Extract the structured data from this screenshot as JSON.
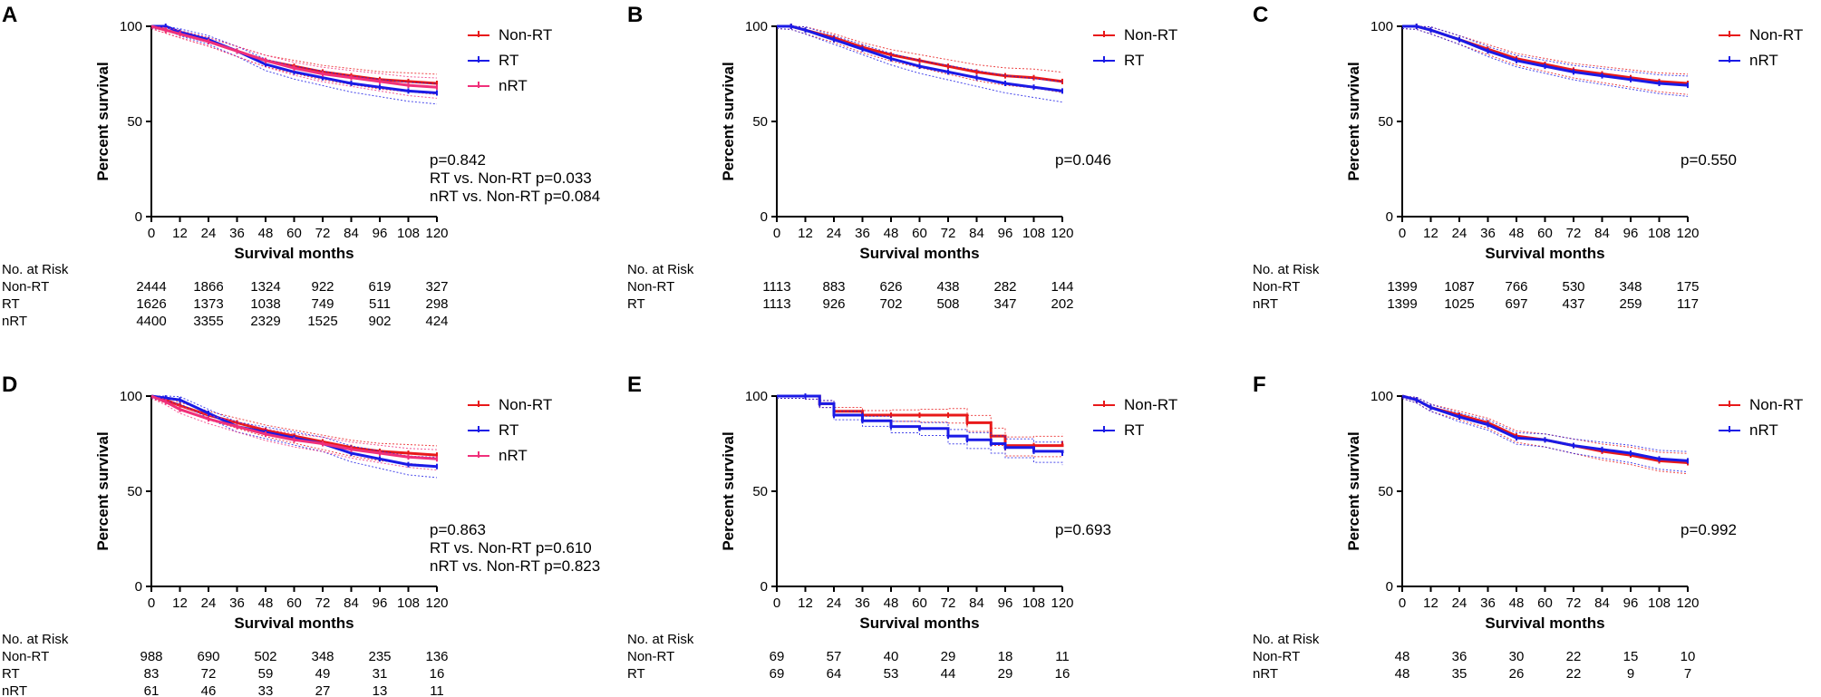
{
  "colors": {
    "non_rt": "#e8191a",
    "rt": "#1a1ae6",
    "nrt": "#f0307a",
    "axis": "#000000"
  },
  "chart_data": [
    {
      "type": "line",
      "panel": "A",
      "xlabel": "Survival months",
      "ylabel": "Percent survival",
      "xticks": [
        0,
        12,
        24,
        36,
        48,
        60,
        72,
        84,
        96,
        108,
        120
      ],
      "yticks": [
        0,
        50,
        100
      ],
      "xlim": [
        0,
        120
      ],
      "ylim": [
        0,
        100
      ],
      "series": [
        {
          "name": "Non-RT",
          "key": "non_rt",
          "x": [
            0,
            6,
            12,
            24,
            36,
            48,
            60,
            72,
            84,
            96,
            108,
            120
          ],
          "y": [
            100,
            98,
            96,
            92,
            87,
            82,
            79,
            76,
            74,
            72,
            71,
            70
          ]
        },
        {
          "name": "RT",
          "key": "rt",
          "x": [
            0,
            6,
            12,
            24,
            36,
            48,
            60,
            72,
            84,
            96,
            108,
            120
          ],
          "y": [
            100,
            100,
            97,
            93,
            87,
            80,
            76,
            73,
            70,
            68,
            66,
            65
          ]
        },
        {
          "name": "nRT",
          "key": "nrt",
          "x": [
            0,
            6,
            12,
            24,
            36,
            48,
            60,
            72,
            84,
            96,
            108,
            120
          ],
          "y": [
            100,
            98,
            96,
            92,
            87,
            82,
            78,
            75,
            73,
            71,
            69,
            68
          ]
        }
      ],
      "pvalue_lines": [
        "p=0.842",
        "RT vs. Non-RT p=0.033",
        "nRT vs. Non-RT p=0.084"
      ],
      "risk_table": {
        "header": "No. at Risk",
        "rows": [
          {
            "label": "Non-RT",
            "values": [
              "2444",
              "1866",
              "1324",
              "922",
              "619",
              "327"
            ]
          },
          {
            "label": "RT",
            "values": [
              "1626",
              "1373",
              "1038",
              "749",
              "511",
              "298"
            ]
          },
          {
            "label": "nRT",
            "values": [
              "4400",
              "3355",
              "2329",
              "1525",
              "902",
              "424"
            ]
          }
        ]
      }
    },
    {
      "type": "line",
      "panel": "B",
      "xlabel": "Survival months",
      "ylabel": "Percent survival",
      "xticks": [
        0,
        12,
        24,
        36,
        48,
        60,
        72,
        84,
        96,
        108,
        120
      ],
      "yticks": [
        0,
        50,
        100
      ],
      "xlim": [
        0,
        120
      ],
      "ylim": [
        0,
        100
      ],
      "series": [
        {
          "name": "Non-RT",
          "key": "non_rt",
          "x": [
            0,
            6,
            12,
            24,
            36,
            48,
            60,
            72,
            84,
            96,
            108,
            120
          ],
          "y": [
            100,
            100,
            98,
            94,
            89,
            85,
            82,
            79,
            76,
            74,
            73,
            71
          ]
        },
        {
          "name": "RT",
          "key": "rt",
          "x": [
            0,
            6,
            12,
            24,
            36,
            48,
            60,
            72,
            84,
            96,
            108,
            120
          ],
          "y": [
            100,
            100,
            98,
            93,
            88,
            83,
            79,
            76,
            73,
            70,
            68,
            66
          ]
        }
      ],
      "pvalue_lines": [
        "p=0.046"
      ],
      "risk_table": {
        "header": "No. at Risk",
        "rows": [
          {
            "label": "Non-RT",
            "values": [
              "1113",
              "883",
              "626",
              "438",
              "282",
              "144"
            ]
          },
          {
            "label": "RT",
            "values": [
              "1113",
              "926",
              "702",
              "508",
              "347",
              "202"
            ]
          }
        ]
      }
    },
    {
      "type": "line",
      "panel": "C",
      "xlabel": "Survival months",
      "ylabel": "Percent survival",
      "xticks": [
        0,
        12,
        24,
        36,
        48,
        60,
        72,
        84,
        96,
        108,
        120
      ],
      "yticks": [
        0,
        50,
        100
      ],
      "xlim": [
        0,
        120
      ],
      "ylim": [
        0,
        100
      ],
      "series": [
        {
          "name": "Non-RT",
          "key": "non_rt",
          "x": [
            0,
            6,
            12,
            24,
            36,
            48,
            60,
            72,
            84,
            96,
            108,
            120
          ],
          "y": [
            100,
            100,
            98,
            93,
            88,
            83,
            80,
            77,
            75,
            73,
            71,
            70
          ]
        },
        {
          "name": "nRT",
          "key": "rt",
          "x": [
            0,
            6,
            12,
            24,
            36,
            48,
            60,
            72,
            84,
            96,
            108,
            120
          ],
          "y": [
            100,
            100,
            98,
            93,
            87,
            82,
            79,
            76,
            74,
            72,
            70,
            69
          ]
        }
      ],
      "pvalue_lines": [
        "p=0.550"
      ],
      "risk_table": {
        "header": "No. at Risk",
        "rows": [
          {
            "label": "Non-RT",
            "values": [
              "1399",
              "1087",
              "766",
              "530",
              "348",
              "175"
            ]
          },
          {
            "label": "nRT",
            "values": [
              "1399",
              "1025",
              "697",
              "437",
              "259",
              "117"
            ]
          }
        ]
      }
    },
    {
      "type": "line",
      "panel": "D",
      "xlabel": "Survival months",
      "ylabel": "Percent survival",
      "xticks": [
        0,
        12,
        24,
        36,
        48,
        60,
        72,
        84,
        96,
        108,
        120
      ],
      "yticks": [
        0,
        50,
        100
      ],
      "xlim": [
        0,
        120
      ],
      "ylim": [
        0,
        100
      ],
      "series": [
        {
          "name": "Non-RT",
          "key": "non_rt",
          "x": [
            0,
            6,
            12,
            24,
            36,
            48,
            60,
            72,
            84,
            96,
            108,
            120
          ],
          "y": [
            100,
            98,
            95,
            90,
            86,
            82,
            79,
            76,
            73,
            71,
            70,
            69
          ]
        },
        {
          "name": "RT",
          "key": "rt",
          "x": [
            0,
            6,
            12,
            24,
            36,
            48,
            60,
            72,
            84,
            96,
            108,
            120
          ],
          "y": [
            100,
            99,
            98,
            91,
            84,
            81,
            78,
            75,
            70,
            67,
            64,
            63
          ]
        },
        {
          "name": "nRT",
          "key": "nrt",
          "x": [
            0,
            6,
            12,
            24,
            36,
            48,
            60,
            72,
            84,
            96,
            108,
            120
          ],
          "y": [
            100,
            97,
            93,
            88,
            84,
            80,
            77,
            75,
            72,
            70,
            68,
            67
          ]
        }
      ],
      "pvalue_lines": [
        "p=0.863",
        "RT vs. Non-RT p=0.610",
        "nRT vs. Non-RT p=0.823"
      ],
      "risk_table": {
        "header": "No. at Risk",
        "rows": [
          {
            "label": "Non-RT",
            "values": [
              "988",
              "690",
              "502",
              "348",
              "235",
              "136"
            ]
          },
          {
            "label": "RT",
            "values": [
              "83",
              "72",
              "59",
              "49",
              "31",
              "16"
            ]
          },
          {
            "label": "nRT",
            "values": [
              "61",
              "46",
              "33",
              "27",
              "13",
              "11"
            ]
          }
        ]
      }
    },
    {
      "type": "line",
      "panel": "E",
      "xlabel": "Survival months",
      "ylabel": "Percent survival",
      "xticks": [
        0,
        12,
        24,
        36,
        48,
        60,
        72,
        84,
        96,
        108,
        120
      ],
      "yticks": [
        0,
        50,
        100
      ],
      "xlim": [
        0,
        120
      ],
      "ylim": [
        0,
        100
      ],
      "series": [
        {
          "name": "Non-RT",
          "key": "non_rt",
          "x": [
            0,
            12,
            18,
            24,
            36,
            48,
            60,
            72,
            80,
            90,
            96,
            108,
            120
          ],
          "y": [
            100,
            100,
            96,
            92,
            90,
            90,
            90,
            90,
            86,
            79,
            74,
            74,
            75
          ]
        },
        {
          "name": "RT",
          "key": "rt",
          "x": [
            0,
            12,
            18,
            24,
            36,
            48,
            60,
            72,
            80,
            90,
            96,
            108,
            120
          ],
          "y": [
            100,
            100,
            96,
            90,
            87,
            84,
            83,
            79,
            77,
            75,
            73,
            71,
            70
          ]
        }
      ],
      "pvalue_lines": [
        "p=0.693"
      ],
      "risk_table": {
        "header": "No. at Risk",
        "rows": [
          {
            "label": "Non-RT",
            "values": [
              "69",
              "57",
              "40",
              "29",
              "18",
              "11"
            ]
          },
          {
            "label": "RT",
            "values": [
              "69",
              "64",
              "53",
              "44",
              "29",
              "16"
            ]
          }
        ]
      }
    },
    {
      "type": "line",
      "panel": "F",
      "xlabel": "Survival months",
      "ylabel": "Percent survival",
      "xticks": [
        0,
        12,
        24,
        36,
        48,
        60,
        72,
        84,
        96,
        108,
        120
      ],
      "yticks": [
        0,
        50,
        100
      ],
      "xlim": [
        0,
        120
      ],
      "ylim": [
        0,
        100
      ],
      "series": [
        {
          "name": "Non-RT",
          "key": "non_rt",
          "x": [
            0,
            6,
            12,
            24,
            36,
            48,
            60,
            72,
            84,
            96,
            108,
            120
          ],
          "y": [
            100,
            98,
            94,
            90,
            86,
            79,
            77,
            74,
            71,
            69,
            66,
            65
          ]
        },
        {
          "name": "nRT",
          "key": "rt",
          "x": [
            0,
            6,
            12,
            24,
            36,
            48,
            60,
            72,
            84,
            96,
            108,
            120
          ],
          "y": [
            100,
            98,
            94,
            89,
            85,
            78,
            77,
            74,
            72,
            70,
            67,
            66
          ]
        }
      ],
      "pvalue_lines": [
        "p=0.992"
      ],
      "risk_table": {
        "header": "No. at Risk",
        "rows": [
          {
            "label": "Non-RT",
            "values": [
              "48",
              "36",
              "30",
              "22",
              "15",
              "10"
            ]
          },
          {
            "label": "nRT",
            "values": [
              "48",
              "35",
              "26",
              "22",
              "9",
              "7"
            ]
          }
        ]
      }
    }
  ]
}
